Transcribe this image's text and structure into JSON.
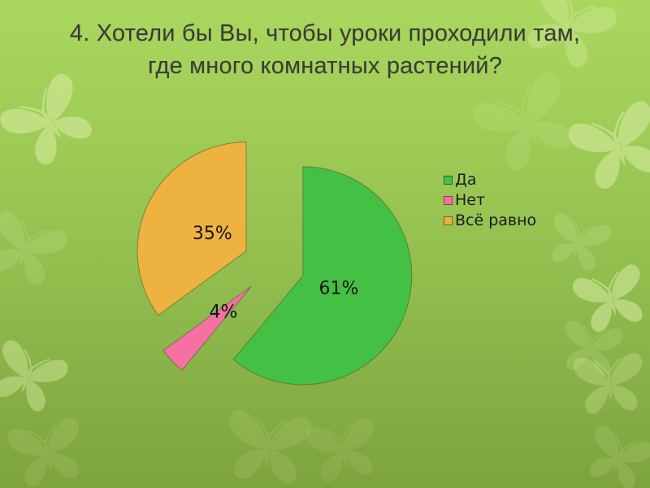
{
  "slide": {
    "title_line1": "4. Хотели бы Вы, чтобы уроки проходили там,",
    "title_line2": "где много комнатных растений?"
  },
  "chart_data": {
    "type": "pie",
    "title": "4. Хотели бы Вы, чтобы уроки проходили там, где много комнатных растений?",
    "slices": [
      {
        "label": "Да",
        "value": 61,
        "display": "61%",
        "color": "#44c144"
      },
      {
        "label": "Нет",
        "value": 4,
        "display": "4%",
        "color": "#f571a1"
      },
      {
        "label": "Всё равно",
        "value": 35,
        "display": "35%",
        "color": "#edb23f"
      }
    ],
    "start_angle_deg": 0,
    "direction": "clockwise",
    "exploded": true,
    "legend_position": "right",
    "data_labels": "percent"
  },
  "colors": {
    "background_top": "#aad75e",
    "background_bottom": "#7da33f",
    "title_text": "#3a3a3a",
    "pie_label_text": "#141414",
    "legend_text": "#1b1b1b",
    "butterfly": "#dff0ac",
    "slice_outline": "#4d4d3f"
  }
}
